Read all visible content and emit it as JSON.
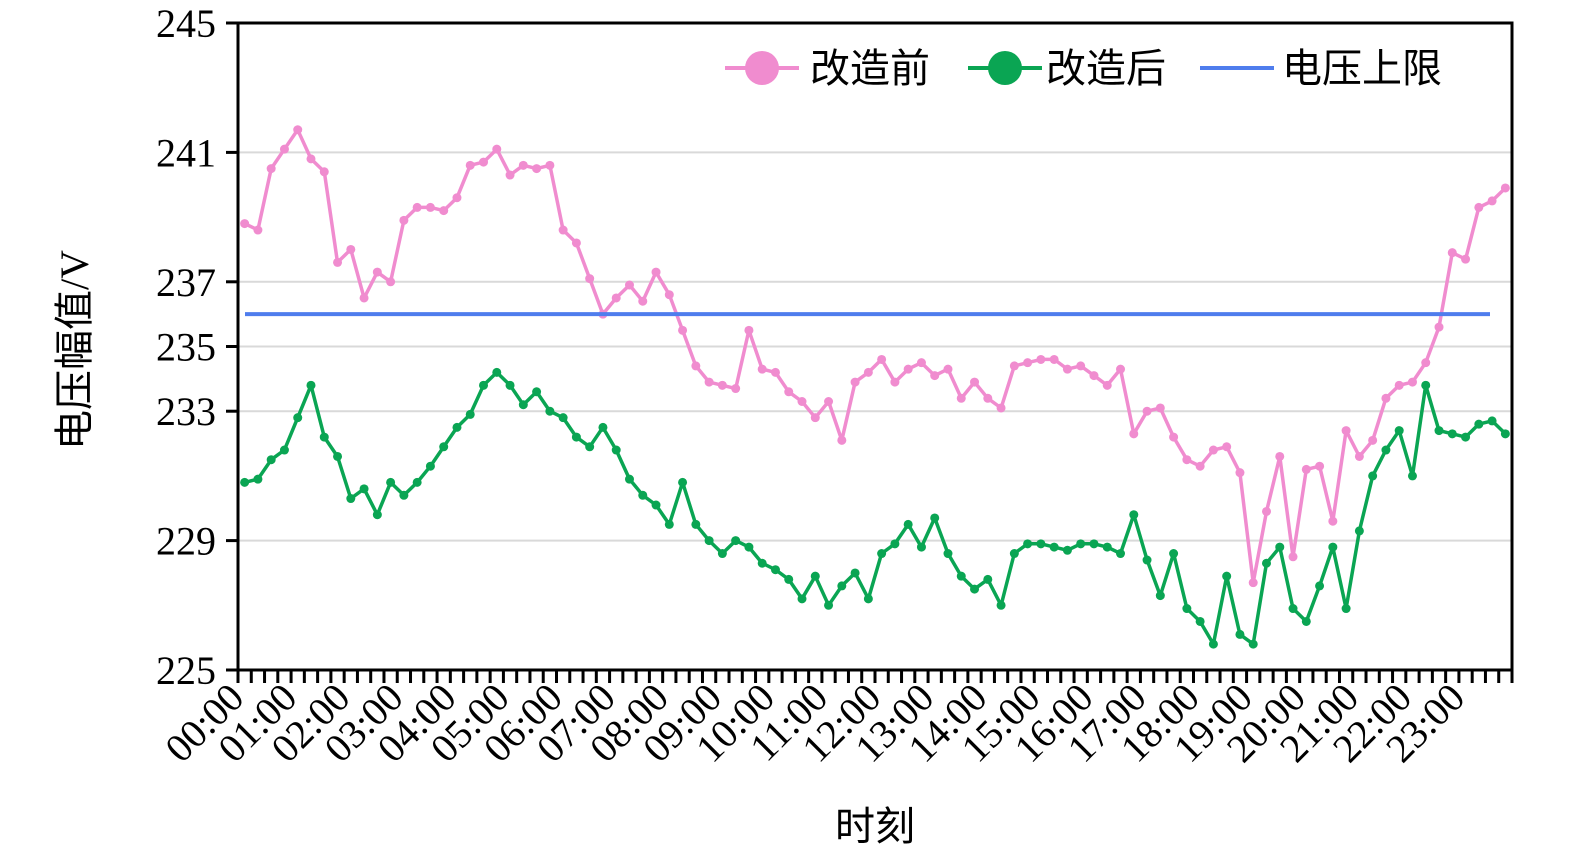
{
  "chart_data": {
    "type": "line",
    "xlabel": "时刻",
    "ylabel": "电压幅值/V",
    "ylim": [
      225,
      245
    ],
    "yticks": [
      225,
      229,
      233,
      235,
      237,
      241,
      245
    ],
    "grid": true,
    "legend_position": "top-right",
    "x_tick_labels": [
      "00:00",
      "01:00",
      "02:00",
      "03:00",
      "04:00",
      "05:00",
      "06:00",
      "07:00",
      "08:00",
      "09:00",
      "10:00",
      "11:00",
      "12:00",
      "13:00",
      "14:00",
      "15:00",
      "16:00",
      "17:00",
      "18:00",
      "19:00",
      "20:00",
      "21:00",
      "22:00",
      "23:00"
    ],
    "x_interval_hours": 0.25,
    "series": [
      {
        "name": "改造前",
        "color": "#f08ccf",
        "marker": "circle",
        "values": [
          238.8,
          238.6,
          240.5,
          241.1,
          241.7,
          240.8,
          240.4,
          237.6,
          238.0,
          236.5,
          237.3,
          237.0,
          238.9,
          239.3,
          239.3,
          239.2,
          239.6,
          240.6,
          240.7,
          241.1,
          240.3,
          240.6,
          240.5,
          240.6,
          238.6,
          238.2,
          237.1,
          236.0,
          236.5,
          236.9,
          236.4,
          237.3,
          236.6,
          235.5,
          234.4,
          233.9,
          233.8,
          233.7,
          235.5,
          234.3,
          234.2,
          233.6,
          233.3,
          232.8,
          233.3,
          232.1,
          233.9,
          234.2,
          234.6,
          233.9,
          234.3,
          234.5,
          234.1,
          234.3,
          233.4,
          233.9,
          233.4,
          233.1,
          234.4,
          234.5,
          234.6,
          234.6,
          234.3,
          234.4,
          234.1,
          233.8,
          234.3,
          232.3,
          233.0,
          233.1,
          232.2,
          231.5,
          231.3,
          231.8,
          231.9,
          231.1,
          227.7,
          229.9,
          231.6,
          228.5,
          231.2,
          231.3,
          229.6,
          232.4,
          231.6,
          232.1,
          233.4,
          233.8,
          233.9,
          234.5,
          235.6,
          237.9,
          237.7,
          239.3,
          239.5,
          239.9
        ]
      },
      {
        "name": "改造后",
        "color": "#0aa553",
        "marker": "circle",
        "values": [
          230.8,
          230.9,
          231.5,
          231.8,
          232.8,
          233.8,
          232.2,
          231.6,
          230.3,
          230.6,
          229.8,
          230.8,
          230.4,
          230.8,
          231.3,
          231.9,
          232.5,
          232.9,
          233.8,
          234.2,
          233.8,
          233.2,
          233.6,
          233.0,
          232.8,
          232.2,
          231.9,
          232.5,
          231.8,
          230.9,
          230.4,
          230.1,
          229.5,
          230.8,
          229.5,
          229.0,
          228.6,
          229.0,
          228.8,
          228.3,
          228.1,
          227.8,
          227.2,
          227.9,
          227.0,
          227.6,
          228.0,
          227.2,
          228.6,
          228.9,
          229.5,
          228.8,
          229.7,
          228.6,
          227.9,
          227.5,
          227.8,
          227.0,
          228.6,
          228.9,
          228.9,
          228.8,
          228.7,
          228.9,
          228.9,
          228.8,
          228.6,
          229.8,
          228.4,
          227.3,
          228.6,
          226.9,
          226.5,
          225.8,
          227.9,
          226.1,
          225.8,
          228.3,
          228.8,
          226.9,
          226.5,
          227.6,
          228.8,
          226.9,
          229.3,
          231.0,
          231.8,
          232.4,
          231.0,
          233.8,
          232.4,
          232.3,
          232.2,
          232.6,
          232.7,
          232.3
        ]
      },
      {
        "name": "电压上限",
        "color": "#4f7ded",
        "marker": "none",
        "values": [
          236,
          236
        ]
      }
    ]
  }
}
